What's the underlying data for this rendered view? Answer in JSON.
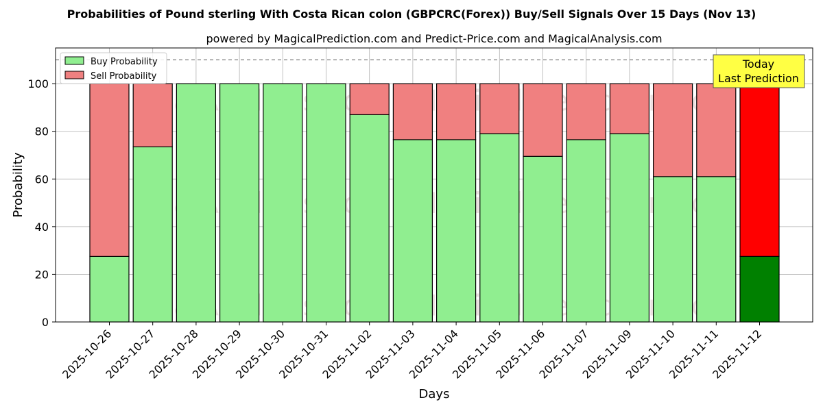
{
  "chart_data": {
    "type": "bar",
    "stacked": true,
    "title": "Probabilities of Pound sterling With Costa Rican colon (GBPCRC(Forex)) Buy/Sell Signals Over 15 Days (Nov 13)",
    "subtitle": "powered by MagicalPrediction.com and Predict-Price.com and MagicalAnalysis.com",
    "xlabel": "Days",
    "ylabel": "Probability",
    "ylim": [
      0,
      115
    ],
    "yticks": [
      0,
      20,
      40,
      60,
      80,
      100
    ],
    "reference_line": 110,
    "grid": true,
    "legend_position": "top-left",
    "categories": [
      "2025-10-26",
      "2025-10-27",
      "2025-10-28",
      "2025-10-29",
      "2025-10-30",
      "2025-10-31",
      "2025-11-02",
      "2025-11-03",
      "2025-11-04",
      "2025-11-05",
      "2025-11-06",
      "2025-11-07",
      "2025-11-09",
      "2025-11-10",
      "2025-11-11",
      "2025-11-12"
    ],
    "series": [
      {
        "name": "Buy Probability",
        "color": "#90ee90",
        "values": [
          27.5,
          73.5,
          100,
          100,
          100,
          100,
          87,
          76.5,
          76.5,
          79,
          69.5,
          76.5,
          79,
          61,
          61,
          27.5
        ]
      },
      {
        "name": "Sell Probability",
        "color": "#f08080",
        "values": [
          72.5,
          26.5,
          0,
          0,
          0,
          0,
          13,
          23.5,
          23.5,
          21,
          30.5,
          23.5,
          21,
          39,
          39,
          72.5
        ]
      }
    ],
    "highlight": {
      "index": 15,
      "buy_color": "#008000",
      "sell_color": "#ff0000"
    },
    "annotation": {
      "line1": "Today",
      "line2": "Last Prediction",
      "bg_color": "#ffff44"
    },
    "watermarks": [
      "MagicalAnalysis.com",
      "MagicalPrediction.com"
    ]
  }
}
